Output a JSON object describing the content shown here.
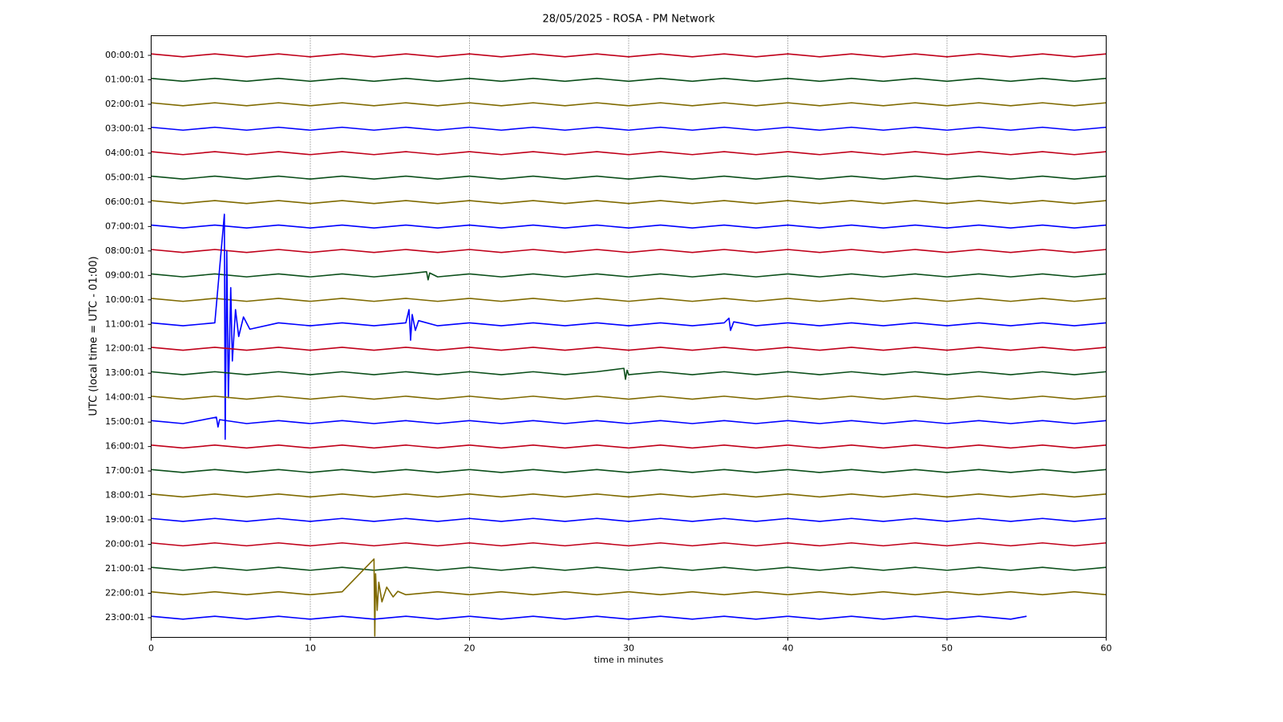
{
  "chart_data": {
    "type": "helicorder",
    "title": "28/05/2025 - ROSA - PM Network",
    "xlabel": "time in minutes",
    "ylabel": "UTC (local time = UTC - 01:00)",
    "xlim": [
      0,
      60
    ],
    "xticks": [
      0,
      10,
      20,
      30,
      40,
      50,
      60
    ],
    "grid": true,
    "categories": [
      "00:00:01",
      "01:00:01",
      "02:00:01",
      "03:00:01",
      "04:00:01",
      "05:00:01",
      "06:00:01",
      "07:00:01",
      "08:00:01",
      "09:00:01",
      "10:00:01",
      "11:00:01",
      "12:00:01",
      "13:00:01",
      "14:00:01",
      "15:00:01",
      "16:00:01",
      "17:00:01",
      "18:00:01",
      "19:00:01",
      "20:00:01",
      "21:00:01",
      "22:00:01",
      "23:00:01"
    ],
    "x": [
      0,
      2,
      4,
      6,
      8,
      10,
      12,
      14,
      16,
      18,
      20,
      22,
      24,
      26,
      28,
      30,
      32,
      34,
      36,
      38,
      40,
      42,
      44,
      46,
      48,
      50,
      52,
      54,
      56,
      58,
      60
    ],
    "series": [
      {
        "color": "#c0001a",
        "values": [
          0.06,
          -0.06,
          0.06,
          -0.06,
          0.06,
          -0.06,
          0.06,
          -0.06,
          0.06,
          -0.06,
          0.06,
          -0.06,
          0.06,
          -0.06,
          0.06,
          -0.06,
          0.06,
          -0.06,
          0.06,
          -0.06,
          0.06,
          -0.06,
          0.06,
          -0.06,
          0.06,
          -0.06,
          0.06,
          -0.06,
          0.06,
          -0.06,
          0.06
        ]
      },
      {
        "color": "#0b4f1a",
        "values": [
          0.06,
          -0.06,
          0.06,
          -0.06,
          0.06,
          -0.06,
          0.06,
          -0.06,
          0.06,
          -0.06,
          0.06,
          -0.06,
          0.06,
          -0.06,
          0.06,
          -0.06,
          0.06,
          -0.06,
          0.06,
          -0.06,
          0.06,
          -0.06,
          0.06,
          -0.06,
          0.06,
          -0.06,
          0.06,
          -0.06,
          0.06,
          -0.06,
          0.06
        ]
      },
      {
        "color": "#7f6a00",
        "values": [
          0.06,
          -0.06,
          0.06,
          -0.06,
          0.06,
          -0.06,
          0.06,
          -0.06,
          0.06,
          -0.06,
          0.06,
          -0.06,
          0.06,
          -0.06,
          0.06,
          -0.06,
          0.06,
          -0.06,
          0.06,
          -0.06,
          0.06,
          -0.06,
          0.06,
          -0.06,
          0.06,
          -0.06,
          0.06,
          -0.06,
          0.06,
          -0.06,
          0.06
        ]
      },
      {
        "color": "#0000ff",
        "values": [
          0.06,
          -0.06,
          0.06,
          -0.06,
          0.06,
          -0.06,
          0.06,
          -0.06,
          0.06,
          -0.06,
          0.06,
          -0.06,
          0.06,
          -0.06,
          0.06,
          -0.06,
          0.06,
          -0.06,
          0.06,
          -0.06,
          0.06,
          -0.06,
          0.06,
          -0.06,
          0.06,
          -0.06,
          0.06,
          -0.06,
          0.06,
          -0.06,
          0.06
        ]
      },
      {
        "color": "#c0001a",
        "values": [
          0.06,
          -0.06,
          0.06,
          -0.06,
          0.06,
          -0.06,
          0.06,
          -0.06,
          0.06,
          -0.06,
          0.06,
          -0.06,
          0.06,
          -0.06,
          0.06,
          -0.06,
          0.06,
          -0.06,
          0.06,
          -0.06,
          0.06,
          -0.06,
          0.06,
          -0.06,
          0.06,
          -0.06,
          0.06,
          -0.06,
          0.06,
          -0.06,
          0.06
        ]
      },
      {
        "color": "#0b4f1a",
        "values": [
          0.06,
          -0.06,
          0.06,
          -0.06,
          0.06,
          -0.06,
          0.06,
          -0.06,
          0.06,
          -0.06,
          0.06,
          -0.06,
          0.06,
          -0.06,
          0.06,
          -0.06,
          0.06,
          -0.06,
          0.06,
          -0.06,
          0.06,
          -0.06,
          0.06,
          -0.06,
          0.06,
          -0.06,
          0.06,
          -0.06,
          0.06,
          -0.06,
          0.06
        ]
      },
      {
        "color": "#7f6a00",
        "values": [
          0.06,
          -0.06,
          0.06,
          -0.06,
          0.06,
          -0.06,
          0.06,
          -0.06,
          0.06,
          -0.06,
          0.06,
          -0.06,
          0.06,
          -0.06,
          0.06,
          -0.06,
          0.06,
          -0.06,
          0.06,
          -0.06,
          0.06,
          -0.06,
          0.06,
          -0.06,
          0.06,
          -0.06,
          0.06,
          -0.06,
          0.06,
          -0.06,
          0.06
        ]
      },
      {
        "color": "#0000ff",
        "values": [
          0.06,
          -0.06,
          0.06,
          -0.06,
          0.06,
          -0.06,
          0.06,
          -0.06,
          0.06,
          -0.06,
          0.06,
          -0.06,
          0.06,
          -0.06,
          0.06,
          -0.06,
          0.06,
          -0.06,
          0.06,
          -0.06,
          0.06,
          -0.06,
          0.06,
          -0.06,
          0.06,
          -0.06,
          0.06,
          -0.06,
          0.06,
          -0.06,
          0.06
        ]
      },
      {
        "color": "#c0001a",
        "values": [
          0.06,
          -0.06,
          0.06,
          -0.06,
          0.06,
          -0.06,
          0.06,
          -0.06,
          0.06,
          -0.06,
          0.06,
          -0.06,
          0.06,
          -0.06,
          0.06,
          -0.06,
          0.06,
          -0.06,
          0.06,
          -0.06,
          0.06,
          -0.06,
          0.06,
          -0.06,
          0.06,
          -0.06,
          0.06,
          -0.06,
          0.06,
          -0.06,
          0.06
        ]
      },
      {
        "color": "#0b4f1a",
        "x": [
          0,
          2,
          4,
          6,
          8,
          10,
          12,
          14,
          16,
          17.3,
          17.4,
          17.5,
          18,
          20,
          22,
          24,
          26,
          28,
          30,
          32,
          34,
          36,
          38,
          40,
          42,
          44,
          46,
          48,
          50,
          52,
          54,
          56,
          58,
          60
        ],
        "values": [
          0.06,
          -0.06,
          0.06,
          -0.06,
          0.06,
          -0.06,
          0.06,
          -0.06,
          0.06,
          0.15,
          -0.18,
          0.1,
          -0.06,
          0.06,
          -0.06,
          0.06,
          -0.06,
          0.06,
          -0.06,
          0.06,
          -0.06,
          0.06,
          -0.06,
          0.06,
          -0.06,
          0.06,
          -0.06,
          0.06,
          -0.06,
          0.06,
          -0.06,
          0.06,
          -0.06,
          0.06
        ]
      },
      {
        "color": "#7f6a00",
        "values": [
          0.06,
          -0.06,
          0.06,
          -0.06,
          0.06,
          -0.06,
          0.06,
          -0.06,
          0.06,
          -0.06,
          0.06,
          -0.06,
          0.06,
          -0.06,
          0.06,
          -0.06,
          0.06,
          -0.06,
          0.06,
          -0.06,
          0.06,
          -0.06,
          0.06,
          -0.06,
          0.06,
          -0.06,
          0.06,
          -0.06,
          0.06,
          -0.06,
          0.06
        ]
      },
      {
        "color": "#0000ff",
        "x": [
          0,
          2,
          4,
          4.6,
          4.65,
          4.75,
          4.85,
          5,
          5.1,
          5.3,
          5.5,
          5.8,
          6.2,
          8,
          10,
          12,
          14,
          16,
          16.2,
          16.3,
          16.4,
          16.6,
          16.8,
          18,
          20,
          22,
          24,
          26,
          28,
          30,
          32,
          34,
          36,
          36.3,
          36.4,
          36.6,
          38,
          40,
          42,
          44,
          46,
          48,
          50,
          52,
          54,
          56,
          58,
          60
        ],
        "values": [
          0.06,
          -0.06,
          0.06,
          4.5,
          -4.7,
          3,
          -3,
          1.5,
          -1.5,
          0.6,
          -0.5,
          0.3,
          -0.2,
          0.06,
          -0.06,
          0.06,
          -0.06,
          0.06,
          0.6,
          -0.65,
          0.4,
          -0.25,
          0.15,
          -0.06,
          0.06,
          -0.06,
          0.06,
          -0.06,
          0.06,
          -0.06,
          0.06,
          -0.06,
          0.06,
          0.25,
          -0.25,
          0.1,
          -0.06,
          0.06,
          -0.06,
          0.06,
          -0.06,
          0.06,
          -0.06,
          0.06,
          -0.06,
          0.06,
          -0.06,
          0.06
        ]
      },
      {
        "color": "#c0001a",
        "values": [
          0.06,
          -0.06,
          0.06,
          -0.06,
          0.06,
          -0.06,
          0.06,
          -0.06,
          0.06,
          -0.06,
          0.06,
          -0.06,
          0.06,
          -0.06,
          0.06,
          -0.06,
          0.06,
          -0.06,
          0.06,
          -0.06,
          0.06,
          -0.06,
          0.06,
          -0.06,
          0.06,
          -0.06,
          0.06,
          -0.06,
          0.06,
          -0.06,
          0.06
        ]
      },
      {
        "color": "#0b4f1a",
        "x": [
          0,
          2,
          4,
          6,
          8,
          10,
          12,
          14,
          16,
          18,
          20,
          22,
          24,
          26,
          28,
          29.7,
          29.8,
          29.9,
          30,
          32,
          34,
          36,
          38,
          40,
          42,
          44,
          46,
          48,
          50,
          52,
          54,
          56,
          58,
          60
        ],
        "values": [
          0.06,
          -0.06,
          0.06,
          -0.06,
          0.06,
          -0.06,
          0.06,
          -0.06,
          0.06,
          -0.06,
          0.06,
          -0.06,
          0.06,
          -0.06,
          0.06,
          0.2,
          -0.25,
          0.12,
          -0.06,
          0.06,
          -0.06,
          0.06,
          -0.06,
          0.06,
          -0.06,
          0.06,
          -0.06,
          0.06,
          -0.06,
          0.06,
          -0.06,
          0.06,
          -0.06,
          0.06
        ]
      },
      {
        "color": "#7f6a00",
        "values": [
          0.06,
          -0.06,
          0.06,
          -0.06,
          0.06,
          -0.06,
          0.06,
          -0.06,
          0.06,
          -0.06,
          0.06,
          -0.06,
          0.06,
          -0.06,
          0.06,
          -0.06,
          0.06,
          -0.06,
          0.06,
          -0.06,
          0.06,
          -0.06,
          0.06,
          -0.06,
          0.06,
          -0.06,
          0.06,
          -0.06,
          0.06,
          -0.06,
          0.06
        ]
      },
      {
        "color": "#0000ff",
        "x": [
          0,
          2,
          4.1,
          4.2,
          4.3,
          6,
          8,
          10,
          12,
          14,
          16,
          18,
          20,
          22,
          24,
          26,
          28,
          30,
          32,
          34,
          36,
          38,
          40,
          42,
          44,
          46,
          48,
          50,
          52,
          54,
          56,
          58,
          60
        ],
        "values": [
          0.06,
          -0.06,
          0.2,
          -0.2,
          0.1,
          -0.06,
          0.06,
          -0.06,
          0.06,
          -0.06,
          0.06,
          -0.06,
          0.06,
          -0.06,
          0.06,
          -0.06,
          0.06,
          -0.06,
          0.06,
          -0.06,
          0.06,
          -0.06,
          0.06,
          -0.06,
          0.06,
          -0.06,
          0.06,
          -0.06,
          0.06,
          -0.06,
          0.06,
          -0.06,
          0.06
        ]
      },
      {
        "color": "#c0001a",
        "values": [
          0.06,
          -0.06,
          0.06,
          -0.06,
          0.06,
          -0.06,
          0.06,
          -0.06,
          0.06,
          -0.06,
          0.06,
          -0.06,
          0.06,
          -0.06,
          0.06,
          -0.06,
          0.06,
          -0.06,
          0.06,
          -0.06,
          0.06,
          -0.06,
          0.06,
          -0.06,
          0.06,
          -0.06,
          0.06,
          -0.06,
          0.06,
          -0.06,
          0.06
        ]
      },
      {
        "color": "#0b4f1a",
        "values": [
          0.06,
          -0.06,
          0.06,
          -0.06,
          0.06,
          -0.06,
          0.06,
          -0.06,
          0.06,
          -0.06,
          0.06,
          -0.06,
          0.06,
          -0.06,
          0.06,
          -0.06,
          0.06,
          -0.06,
          0.06,
          -0.06,
          0.06,
          -0.06,
          0.06,
          -0.06,
          0.06,
          -0.06,
          0.06,
          -0.06,
          0.06,
          -0.06,
          0.06
        ]
      },
      {
        "color": "#7f6a00",
        "values": [
          0.06,
          -0.06,
          0.06,
          -0.06,
          0.06,
          -0.06,
          0.06,
          -0.06,
          0.06,
          -0.06,
          0.06,
          -0.06,
          0.06,
          -0.06,
          0.06,
          -0.06,
          0.06,
          -0.06,
          0.06,
          -0.06,
          0.06,
          -0.06,
          0.06,
          -0.06,
          0.06,
          -0.06,
          0.06,
          -0.06,
          0.06,
          -0.06,
          0.06
        ]
      },
      {
        "color": "#0000ff",
        "values": [
          0.06,
          -0.06,
          0.06,
          -0.06,
          0.06,
          -0.06,
          0.06,
          -0.06,
          0.06,
          -0.06,
          0.06,
          -0.06,
          0.06,
          -0.06,
          0.06,
          -0.06,
          0.06,
          -0.06,
          0.06,
          -0.06,
          0.06,
          -0.06,
          0.06,
          -0.06,
          0.06,
          -0.06,
          0.06,
          -0.06,
          0.06,
          -0.06,
          0.06
        ]
      },
      {
        "color": "#c0001a",
        "values": [
          0.06,
          -0.06,
          0.06,
          -0.06,
          0.06,
          -0.06,
          0.06,
          -0.06,
          0.06,
          -0.06,
          0.06,
          -0.06,
          0.06,
          -0.06,
          0.06,
          -0.06,
          0.06,
          -0.06,
          0.06,
          -0.06,
          0.06,
          -0.06,
          0.06,
          -0.06,
          0.06,
          -0.06,
          0.06,
          -0.06,
          0.06,
          -0.06,
          0.06
        ]
      },
      {
        "color": "#0b4f1a",
        "values": [
          0.06,
          -0.06,
          0.06,
          -0.06,
          0.06,
          -0.06,
          0.06,
          -0.06,
          0.06,
          -0.06,
          0.06,
          -0.06,
          0.06,
          -0.06,
          0.06,
          -0.06,
          0.06,
          -0.06,
          0.06,
          -0.06,
          0.06,
          -0.06,
          0.06,
          -0.06,
          0.06,
          -0.06,
          0.06,
          -0.06,
          0.06,
          -0.06,
          0.06
        ]
      },
      {
        "color": "#7f6a00",
        "x": [
          0,
          2,
          4,
          6,
          8,
          10,
          12,
          14,
          14.05,
          14.1,
          14.2,
          14.3,
          14.5,
          14.8,
          15.2,
          15.5,
          16,
          18,
          20,
          22,
          24,
          26,
          28,
          30,
          32,
          34,
          36,
          38,
          40,
          42,
          44,
          46,
          48,
          50,
          52,
          54,
          56,
          58,
          60
        ],
        "values": [
          0.06,
          -0.06,
          0.06,
          -0.06,
          0.06,
          -0.06,
          0.06,
          1.4,
          -1.75,
          0.8,
          -0.7,
          0.45,
          -0.35,
          0.25,
          -0.15,
          0.08,
          -0.06,
          0.06,
          -0.06,
          0.06,
          -0.06,
          0.06,
          -0.06,
          0.06,
          -0.06,
          0.06,
          -0.06,
          0.06,
          -0.06,
          0.06,
          -0.06,
          0.06,
          -0.06,
          0.06,
          -0.06,
          0.06,
          -0.06,
          0.06,
          -0.06
        ]
      },
      {
        "color": "#0000ff",
        "x": [
          0,
          2,
          4,
          6,
          8,
          10,
          12,
          14,
          16,
          18,
          20,
          22,
          24,
          26,
          28,
          30,
          32,
          34,
          36,
          38,
          40,
          42,
          44,
          46,
          48,
          50,
          52,
          54,
          55
        ],
        "values": [
          0.06,
          -0.06,
          0.06,
          -0.06,
          0.06,
          -0.06,
          0.06,
          -0.06,
          0.06,
          -0.06,
          0.06,
          -0.06,
          0.06,
          -0.06,
          0.06,
          -0.06,
          0.06,
          -0.06,
          0.06,
          -0.06,
          0.06,
          -0.06,
          0.06,
          -0.06,
          0.06,
          -0.06,
          0.06,
          -0.06,
          0.06
        ]
      }
    ]
  }
}
